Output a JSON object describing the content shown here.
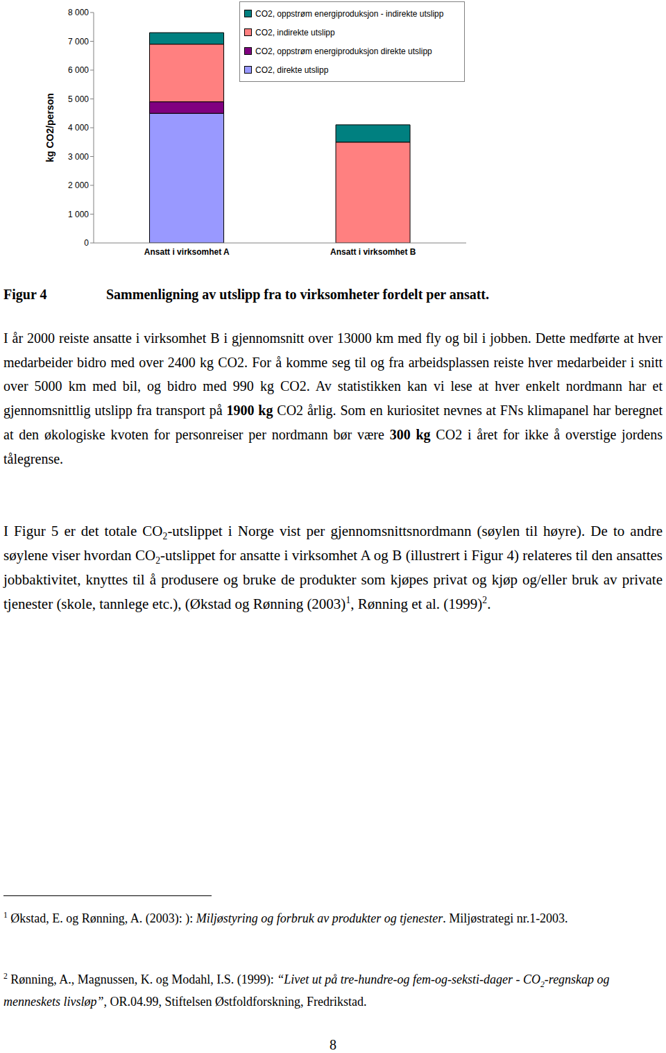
{
  "chart_data": {
    "type": "bar",
    "stacked": true,
    "categories": [
      "Ansatt i virksomhet A",
      "Ansatt i virksomhet B"
    ],
    "series": [
      {
        "name": "CO2, direkte utslipp",
        "color": "#9999ff",
        "values": [
          4500,
          0
        ]
      },
      {
        "name": "CO2, oppstrøm energiproduksjon direkte utslipp",
        "color": "#800080",
        "values": [
          400,
          0
        ]
      },
      {
        "name": "CO2, indirekte utslipp",
        "color": "#ff8080",
        "values": [
          2000,
          3500
        ]
      },
      {
        "name": "CO2, oppstrøm energiproduksjon - indirekte utslipp",
        "color": "#008080",
        "values": [
          400,
          600
        ]
      }
    ],
    "ylabel": "kg CO2/person",
    "ylim": [
      0,
      8000
    ],
    "yticks": [
      0,
      {
        "value": 1000,
        "label": "1 000"
      },
      {
        "value": 2000,
        "label": "2 000"
      },
      {
        "value": 3000,
        "label": "3 000"
      },
      {
        "value": 4000,
        "label": "4 000"
      },
      {
        "value": 5000,
        "label": "5 000"
      },
      {
        "value": 6000,
        "label": "6 000"
      },
      {
        "value": 7000,
        "label": "7 000"
      },
      {
        "value": 8000,
        "label": "8 000"
      }
    ],
    "grid": false,
    "legend": "upper right"
  },
  "figure_caption": {
    "label": "Figur 4",
    "title": "Sammenligning av utslipp fra to virksomheter fordelt per ansatt."
  },
  "paragraphs": [
    [
      {
        "text": "I år 2000 reiste ansatte i virksomhet B i gjennomsnitt over 13000 km med fly og bil i jobben. Dette medførte at hver medarbeider bidro med over 2400 kg CO2.  For å komme seg til og fra arbeidsplassen reiste hver medarbeider i snitt over 5000 km med bil, og bidro med 990 kg CO2.  Av statistikken kan vi lese at hver enkelt nordmann har et gjennomsnittlig utslipp fra transport på "
      },
      {
        "text": "1900 kg",
        "bold": true
      },
      {
        "text": " CO2 årlig.  Som en kuriositet nevnes at FNs klimapanel har beregnet at den økologiske kvoten for personreiser per nordmann bør være "
      },
      {
        "text": "300 kg",
        "bold": true
      },
      {
        "text": " CO2 i året for ikke å overstige jordens tålegrense."
      }
    ],
    [
      {
        "text": "I Figur 5 er det totale CO"
      },
      {
        "text": "2",
        "sub": true
      },
      {
        "text": "-utslippet i Norge vist per gjennomsnittsnordmann (søylen til høyre). De to andre søylene viser hvordan CO"
      },
      {
        "text": "2",
        "sub": true
      },
      {
        "text": "-utslippet for ansatte i virksomhet A og B (illustrert i Figur 4) relateres til den ansattes jobbaktivitet, knyttes til å produsere og bruke de produkter som kjøpes privat og kjøp og/eller bruk av private tjenester (skole, tannlege etc.), (Økstad og Rønning (2003)"
      },
      {
        "text": "1",
        "sup": true
      },
      {
        "text": ", Rønning et al. (1999)"
      },
      {
        "text": "2",
        "sup": true
      },
      {
        "text": "."
      }
    ]
  ],
  "footnotes": [
    [
      {
        "text": "1",
        "sup": true
      },
      {
        "text": " Økstad, E. og Rønning, A. (2003):   ): "
      },
      {
        "text": "Miljøstyring og forbruk av produkter og tjenester",
        "italic": true
      },
      {
        "text": ". Miljøstrategi nr.1-2003."
      }
    ],
    [
      {
        "text": "2",
        "sup": true
      },
      {
        "text": " Rønning, A., Magnussen, K. og Modahl, I.S. (1999): "
      },
      {
        "text": "“Livet ut på tre-hundre-og fem-og-seksti-dager - CO",
        "italic": true
      },
      {
        "text": "2",
        "sub": true,
        "italic": true
      },
      {
        "text": "-regnskap og menneskets livsløp”",
        "italic": true
      },
      {
        "text": ", OR.04.99, Stiftelsen Østfoldforskning, Fredrikstad."
      }
    ]
  ],
  "page_number": "8"
}
